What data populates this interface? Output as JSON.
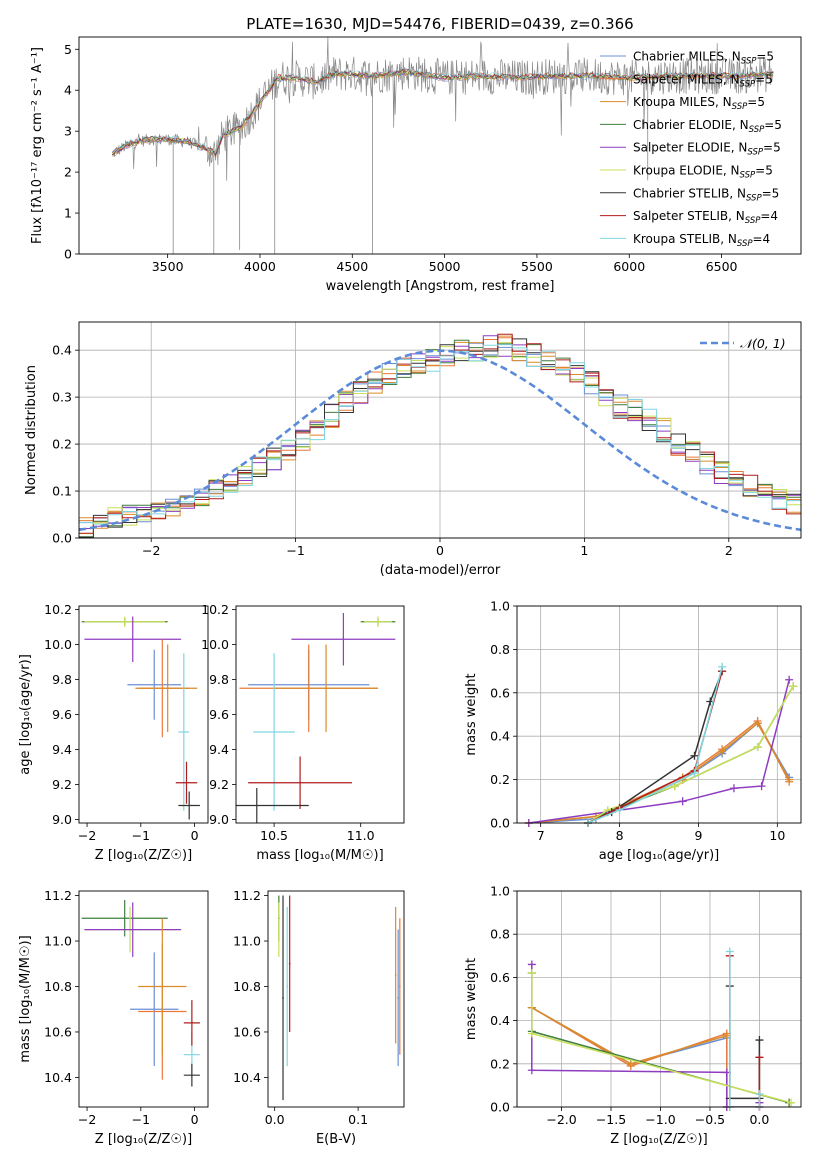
{
  "figure": {
    "title": "PLATE=1630, MJD=54476, FIBERID=0439, z=0.366"
  },
  "legend_models": [
    {
      "name": "Chabrier MILES",
      "nssp": "5",
      "color": "#6b8fd4"
    },
    {
      "name": "Salpeter MILES",
      "nssp": "5",
      "color": "#e87b3a"
    },
    {
      "name": "Kroupa MILES",
      "nssp": "5",
      "color": "#d98c2a"
    },
    {
      "name": "Chabrier ELODIE",
      "nssp": "5",
      "color": "#3f7f3f"
    },
    {
      "name": "Salpeter ELODIE",
      "nssp": "5",
      "color": "#8e3cc0"
    },
    {
      "name": "Kroupa ELODIE",
      "nssp": "5",
      "color": "#c8e05a"
    },
    {
      "name": "Chabrier STELIB",
      "nssp": "5",
      "color": "#333333"
    },
    {
      "name": "Salpeter STELIB",
      "nssp": "4",
      "color": "#b01c1c"
    },
    {
      "name": "Kroupa STELIB",
      "nssp": "4",
      "color": "#7fd6e0"
    }
  ],
  "chart_data": [
    {
      "id": "spectrum",
      "type": "line",
      "xlabel": "wavelength [Angstrom, rest frame]",
      "ylabel": "Flux [fλ10⁻¹⁷ erg cm⁻² s⁻¹ A⁻¹]",
      "xlim": [
        3020,
        6930
      ],
      "ylim": [
        0,
        5.3
      ],
      "xticks": [
        "3500",
        "4000",
        "4500",
        "5000",
        "5500",
        "6000",
        "6500"
      ],
      "yticks": [
        "0",
        "1",
        "2",
        "3",
        "4",
        "5"
      ],
      "grid": false,
      "legend": "right",
      "continuum": [
        [
          3200,
          2.45
        ],
        [
          3300,
          2.7
        ],
        [
          3400,
          2.8
        ],
        [
          3500,
          2.8
        ],
        [
          3600,
          2.75
        ],
        [
          3700,
          2.6
        ],
        [
          3760,
          2.45
        ],
        [
          3800,
          2.9
        ],
        [
          3900,
          3.1
        ],
        [
          4000,
          3.7
        ],
        [
          4100,
          4.3
        ],
        [
          4200,
          4.3
        ],
        [
          4300,
          4.2
        ],
        [
          4400,
          4.4
        ],
        [
          4500,
          4.4
        ],
        [
          4600,
          4.35
        ],
        [
          4800,
          4.45
        ],
        [
          5000,
          4.3
        ],
        [
          5200,
          4.35
        ],
        [
          5400,
          4.3
        ],
        [
          5600,
          4.35
        ],
        [
          5800,
          4.35
        ],
        [
          6000,
          4.3
        ],
        [
          6200,
          4.35
        ],
        [
          6400,
          4.35
        ],
        [
          6600,
          4.35
        ],
        [
          6780,
          4.4
        ]
      ]
    },
    {
      "id": "residuals",
      "type": "step",
      "xlabel": "(data-model)/error",
      "ylabel": "Normed distribution",
      "xlim": [
        -2.5,
        2.5
      ],
      "ylim": [
        0,
        0.46
      ],
      "xticks": [
        "−2",
        "−1",
        "0",
        "1",
        "2"
      ],
      "yticks": [
        "0.0",
        "0.1",
        "0.2",
        "0.3",
        "0.4"
      ],
      "grid": true,
      "legend": "top-right",
      "normal_curve_label": "𝒩(0, 1)",
      "bin_width": 0.1,
      "bin_start": -2.5,
      "base_values": [
        0.02,
        0.03,
        0.04,
        0.05,
        0.05,
        0.06,
        0.07,
        0.08,
        0.09,
        0.1,
        0.12,
        0.13,
        0.15,
        0.17,
        0.19,
        0.21,
        0.23,
        0.26,
        0.29,
        0.31,
        0.33,
        0.35,
        0.36,
        0.37,
        0.38,
        0.39,
        0.4,
        0.4,
        0.41,
        0.41,
        0.4,
        0.39,
        0.38,
        0.37,
        0.35,
        0.33,
        0.3,
        0.28,
        0.27,
        0.25,
        0.23,
        0.2,
        0.18,
        0.16,
        0.14,
        0.12,
        0.11,
        0.1,
        0.08,
        0.07
      ]
    },
    {
      "id": "age_vs_z",
      "type": "errorbar",
      "xlabel": "Z [log₁₀(Z/Z☉)]",
      "ylabel": "age  [log₁₀(age/yr)]",
      "xlim": [
        -2.15,
        0.25
      ],
      "ylim": [
        8.98,
        10.22
      ],
      "xticks": [
        "−2",
        "−1",
        "0"
      ],
      "yticks": [
        "9.0",
        "9.2",
        "9.4",
        "9.6",
        "9.8",
        "10.0",
        "10.2"
      ],
      "points": [
        {
          "x": -1.3,
          "y": 10.13,
          "xerr": 0.8,
          "yerr": 0.02,
          "c": 3
        },
        {
          "x": -1.3,
          "y": 10.13,
          "xerr": 0.75,
          "yerr": 0.03,
          "c": 5
        },
        {
          "x": -1.15,
          "y": 10.03,
          "xerr": 0.9,
          "yerr": 0.13,
          "c": 4
        },
        {
          "x": -0.75,
          "y": 9.77,
          "xerr": 0.5,
          "yerr": 0.2,
          "c": 0
        },
        {
          "x": -0.6,
          "y": 9.75,
          "xerr": 0.5,
          "yerr": 0.28,
          "c": 1
        },
        {
          "x": -0.5,
          "y": 9.75,
          "xerr": 0.55,
          "yerr": 0.25,
          "c": 2
        },
        {
          "x": -0.2,
          "y": 9.5,
          "xerr": 0.1,
          "yerr": 0.45,
          "c": 8
        },
        {
          "x": -0.15,
          "y": 9.21,
          "xerr": 0.2,
          "yerr": 0.12,
          "c": 7
        },
        {
          "x": -0.1,
          "y": 9.08,
          "xerr": 0.2,
          "yerr": 0.08,
          "c": 6
        }
      ]
    },
    {
      "id": "age_vs_mass",
      "type": "errorbar",
      "xlabel": "mass [log₁₀(M/M☉)]",
      "ylabel": "",
      "xlim": [
        10.28,
        11.25
      ],
      "ylim": [
        8.98,
        10.22
      ],
      "xticks": [
        "10.5",
        "11.0"
      ],
      "yticks": [
        "9.0",
        "9.2",
        "9.4",
        "9.6",
        "9.8",
        "10.0",
        "10.2"
      ],
      "points": [
        {
          "x": 11.1,
          "y": 10.13,
          "xerr": 0.1,
          "yerr": 0.02,
          "c": 3
        },
        {
          "x": 11.1,
          "y": 10.13,
          "xerr": 0.08,
          "yerr": 0.03,
          "c": 5
        },
        {
          "x": 10.9,
          "y": 10.03,
          "xerr": 0.3,
          "yerr": 0.15,
          "c": 4
        },
        {
          "x": 10.7,
          "y": 9.77,
          "xerr": 0.35,
          "yerr": 0.2,
          "c": 0
        },
        {
          "x": 10.7,
          "y": 9.75,
          "xerr": 0.4,
          "yerr": 0.25,
          "c": 1
        },
        {
          "x": 10.8,
          "y": 9.75,
          "xerr": 0.3,
          "yerr": 0.25,
          "c": 2
        },
        {
          "x": 10.5,
          "y": 9.5,
          "xerr": 0.12,
          "yerr": 0.45,
          "c": 8
        },
        {
          "x": 10.65,
          "y": 9.21,
          "xerr": 0.3,
          "yerr": 0.15,
          "c": 7
        },
        {
          "x": 10.4,
          "y": 9.08,
          "xerr": 0.3,
          "yerr": 0.1,
          "c": 6
        }
      ]
    },
    {
      "id": "weight_vs_age",
      "type": "line",
      "xlabel": "age  [log₁₀(age/yr)]",
      "ylabel": "mass weight",
      "xlim": [
        6.7,
        10.3
      ],
      "ylim": [
        0,
        1.0
      ],
      "xticks": [
        "7",
        "8",
        "9",
        "10"
      ],
      "yticks": [
        "0.0",
        "0.2",
        "0.4",
        "0.6",
        "0.8",
        "1.0"
      ],
      "grid": true,
      "series": [
        {
          "c": 0,
          "x": [
            6.85,
            7.7,
            8.8,
            9.3,
            9.75,
            10.15
          ],
          "y": [
            0.0,
            0.02,
            0.2,
            0.32,
            0.46,
            0.21
          ]
        },
        {
          "c": 1,
          "x": [
            6.85,
            7.7,
            8.8,
            9.3,
            9.75,
            10.15
          ],
          "y": [
            0.0,
            0.03,
            0.21,
            0.34,
            0.47,
            0.19
          ]
        },
        {
          "c": 2,
          "x": [
            6.85,
            7.7,
            8.8,
            9.3,
            9.75,
            10.15
          ],
          "y": [
            0.0,
            0.03,
            0.2,
            0.33,
            0.46,
            0.2
          ]
        },
        {
          "c": 3,
          "x": [
            7.6,
            7.85,
            8.7,
            9.75,
            10.2
          ],
          "y": [
            0.0,
            0.05,
            0.17,
            0.35,
            0.63
          ]
        },
        {
          "c": 4,
          "x": [
            6.85,
            8.8,
            9.45,
            9.8,
            10.15
          ],
          "y": [
            0.0,
            0.1,
            0.16,
            0.17,
            0.66
          ]
        },
        {
          "c": 5,
          "x": [
            7.6,
            7.85,
            8.7,
            9.75,
            10.2
          ],
          "y": [
            0.0,
            0.06,
            0.17,
            0.35,
            0.63
          ]
        },
        {
          "c": 6,
          "x": [
            7.6,
            7.9,
            8.95,
            9.15,
            9.3
          ],
          "y": [
            0.0,
            0.05,
            0.31,
            0.56,
            0.7
          ]
        },
        {
          "c": 7,
          "x": [
            7.6,
            8.0,
            8.95,
            9.3
          ],
          "y": [
            0.0,
            0.07,
            0.24,
            0.7
          ]
        },
        {
          "c": 8,
          "x": [
            7.6,
            8.0,
            8.95,
            9.3
          ],
          "y": [
            0.0,
            0.06,
            0.23,
            0.72
          ]
        }
      ]
    },
    {
      "id": "mass_vs_z",
      "type": "errorbar",
      "xlabel": "Z [log₁₀(Z/Z☉)]",
      "ylabel": "mass [log₁₀(M/M☉)]",
      "xlim": [
        -2.15,
        0.25
      ],
      "ylim": [
        10.27,
        11.22
      ],
      "xticks": [
        "−2",
        "−1",
        "0"
      ],
      "yticks": [
        "10.4",
        "10.6",
        "10.8",
        "11.0",
        "11.2"
      ],
      "points": [
        {
          "x": -1.3,
          "y": 11.1,
          "xerr": 0.8,
          "yerr": 0.08,
          "c": 3
        },
        {
          "x": -1.2,
          "y": 11.05,
          "xerr": 0.85,
          "yerr": 0.1,
          "c": 5
        },
        {
          "x": -1.15,
          "y": 11.05,
          "xerr": 0.9,
          "yerr": 0.12,
          "c": 4
        },
        {
          "x": -0.75,
          "y": 10.7,
          "xerr": 0.45,
          "yerr": 0.25,
          "c": 0
        },
        {
          "x": -0.6,
          "y": 10.69,
          "xerr": 0.45,
          "yerr": 0.3,
          "c": 1
        },
        {
          "x": -0.6,
          "y": 10.8,
          "xerr": 0.45,
          "yerr": 0.3,
          "c": 2
        },
        {
          "x": -0.05,
          "y": 10.5,
          "xerr": 0.15,
          "yerr": 0.1,
          "c": 8
        },
        {
          "x": -0.05,
          "y": 10.64,
          "xerr": 0.15,
          "yerr": 0.1,
          "c": 7
        },
        {
          "x": -0.05,
          "y": 10.41,
          "xerr": 0.15,
          "yerr": 0.05,
          "c": 6
        }
      ]
    },
    {
      "id": "mass_vs_ebv",
      "type": "errorbar",
      "xlabel": "E(B-V)",
      "ylabel": "",
      "xlim": [
        -0.008,
        0.155
      ],
      "ylim": [
        10.27,
        11.22
      ],
      "xticks": [
        "0.0",
        "0.1"
      ],
      "yticks": [
        "10.4",
        "10.6",
        "10.8",
        "11.0",
        "11.2"
      ],
      "points": [
        {
          "x": 0.005,
          "y": 11.1,
          "xerr": 0.001,
          "yerr": 0.1,
          "c": 3
        },
        {
          "x": 0.005,
          "y": 11.05,
          "xerr": 0.001,
          "yerr": 0.12,
          "c": 5
        },
        {
          "x": 0.01,
          "y": 10.75,
          "xerr": 0.001,
          "yerr": 0.45,
          "c": 6
        },
        {
          "x": 0.015,
          "y": 10.8,
          "xerr": 0.001,
          "yerr": 0.35,
          "c": 8
        },
        {
          "x": 0.018,
          "y": 10.9,
          "xerr": 0.001,
          "yerr": 0.3,
          "c": 7
        },
        {
          "x": 0.145,
          "y": 10.85,
          "xerr": 0.001,
          "yerr": 0.3,
          "c": 2
        },
        {
          "x": 0.148,
          "y": 10.75,
          "xerr": 0.001,
          "yerr": 0.3,
          "c": 0
        },
        {
          "x": 0.15,
          "y": 10.8,
          "xerr": 0.001,
          "yerr": 0.3,
          "c": 1
        }
      ]
    },
    {
      "id": "weight_vs_z",
      "type": "line",
      "xlabel": "Z [log₁₀(Z/Z☉)]",
      "ylabel": "mass weight",
      "xlim": [
        -2.45,
        0.42
      ],
      "ylim": [
        0,
        1.0
      ],
      "xticks": [
        "−2.0",
        "−1.5",
        "−1.0",
        "−0.5",
        "0.0"
      ],
      "yticks": [
        "0.0",
        "0.2",
        "0.4",
        "0.6",
        "0.8",
        "1.0"
      ],
      "grid": true,
      "series": [
        {
          "c": 0,
          "x": [
            -2.3,
            -1.3,
            -0.33,
            -0.33
          ],
          "y": [
            0.46,
            0.2,
            0.32,
            0.0
          ]
        },
        {
          "c": 1,
          "x": [
            -2.3,
            -1.3,
            -0.33,
            -0.33
          ],
          "y": [
            0.46,
            0.19,
            0.34,
            0.0
          ]
        },
        {
          "c": 2,
          "x": [
            -2.3,
            -1.3,
            -0.33
          ],
          "y": [
            0.46,
            0.2,
            0.33
          ]
        },
        {
          "c": 3,
          "x": [
            -2.3,
            -2.3,
            0.3
          ],
          "y": [
            0.62,
            0.35,
            0.02
          ]
        },
        {
          "c": 4,
          "x": [
            -2.3,
            -2.3,
            -0.33,
            -0.33,
            0.0,
            0.0
          ],
          "y": [
            0.66,
            0.17,
            0.16,
            0.0,
            0.0,
            0.02
          ]
        },
        {
          "c": 5,
          "x": [
            -2.3,
            -2.3,
            0.32
          ],
          "y": [
            0.62,
            0.34,
            0.02
          ]
        },
        {
          "c": 6,
          "x": [
            -0.3,
            -0.3,
            0.0,
            0.0
          ],
          "y": [
            0.56,
            0.04,
            0.04,
            0.31
          ]
        },
        {
          "c": 7,
          "x": [
            -0.3,
            -0.3,
            0.0,
            0.0
          ],
          "y": [
            0.7,
            0.0,
            0.0,
            0.23
          ]
        },
        {
          "c": 8,
          "x": [
            -0.3,
            -0.3,
            0.0,
            0.0
          ],
          "y": [
            0.72,
            0.0,
            0.0,
            0.06
          ]
        }
      ]
    }
  ]
}
